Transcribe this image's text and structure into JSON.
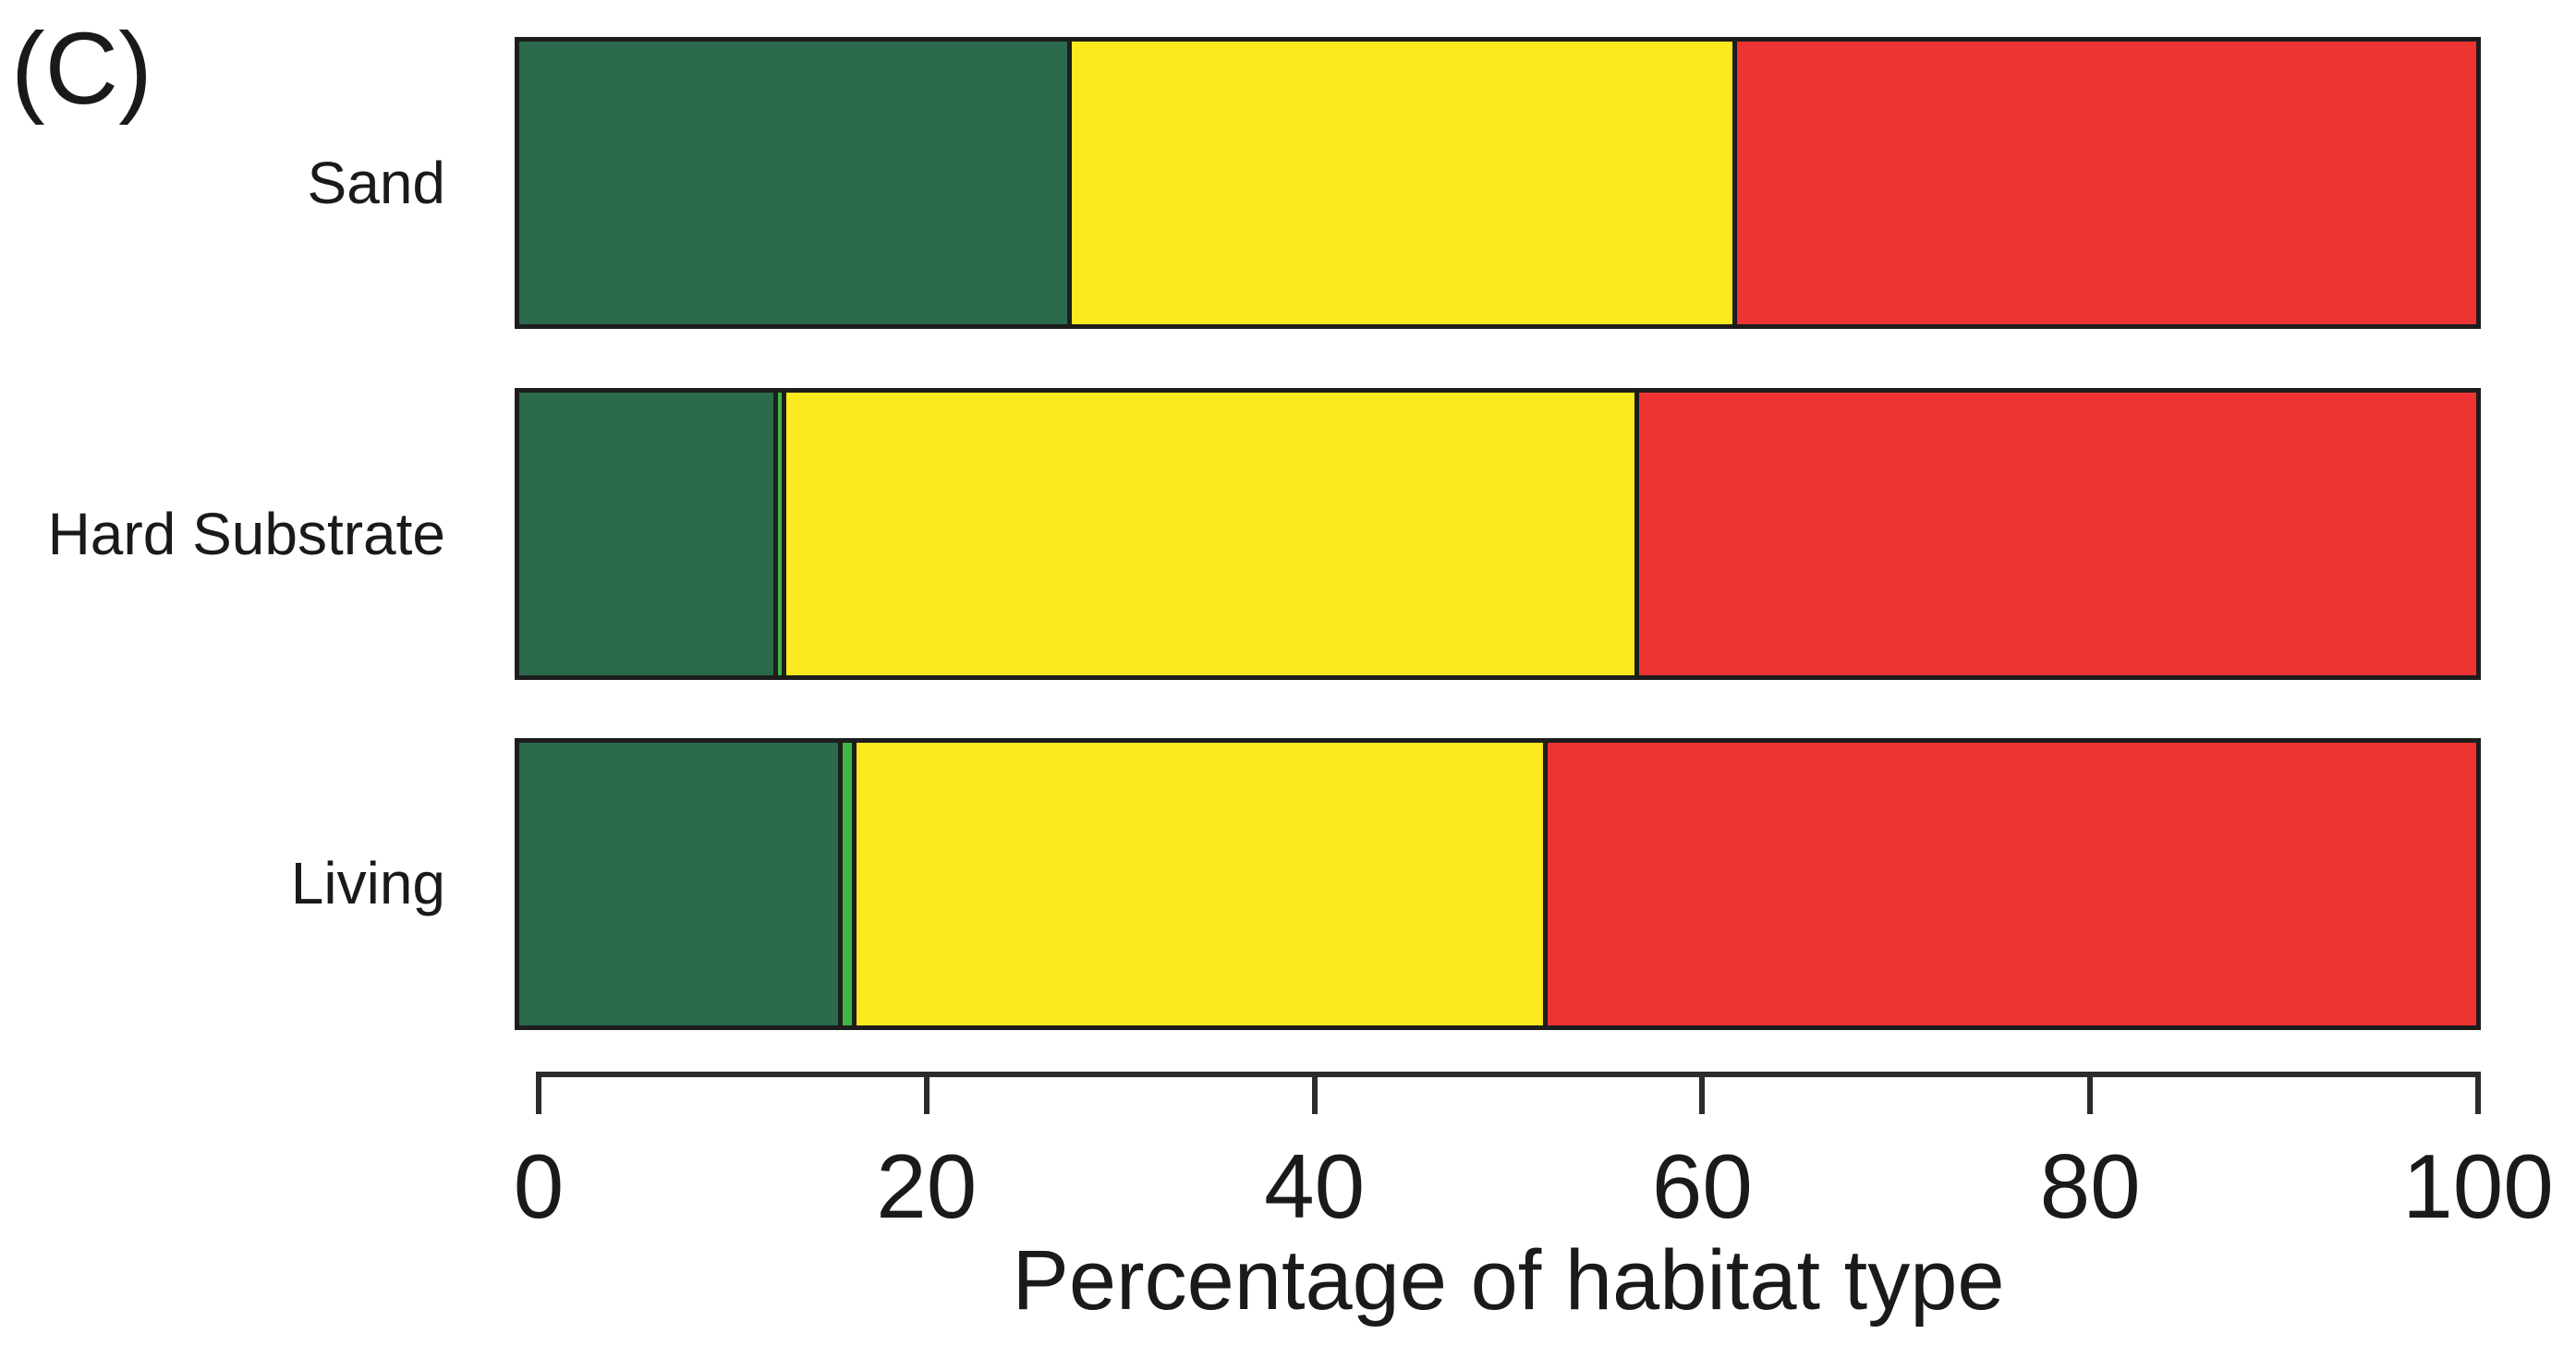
{
  "panel_label": "(C)",
  "colors": {
    "background": "#ffffff",
    "bar_border": "#1d1d1d",
    "axis": "#2b2b2b",
    "text": "#1a1a1a",
    "dark_green": "#2b6a4c",
    "light_green": "#3eb549",
    "yellow": "#fce91e",
    "red": "#ee3333"
  },
  "chart_data": {
    "type": "bar",
    "orientation": "horizontal",
    "stacked": true,
    "title": "",
    "xlabel": "Percentage of habitat type",
    "ylabel": "",
    "xlim": [
      0,
      100
    ],
    "x_ticks": [
      0,
      20,
      40,
      60,
      80,
      100
    ],
    "grid": false,
    "legend_position": "none",
    "categories": [
      "Sand",
      "Hard Substrate",
      "Living"
    ],
    "series": [
      {
        "name": "dark-green",
        "color": "#2b6a4c",
        "values": [
          28,
          13,
          16.3
        ]
      },
      {
        "name": "light-green",
        "color": "#3eb549",
        "values": [
          0,
          0.4,
          0.7
        ]
      },
      {
        "name": "yellow",
        "color": "#fce91e",
        "values": [
          34,
          43.6,
          35.3
        ]
      },
      {
        "name": "red",
        "color": "#ee3333",
        "values": [
          38,
          43,
          47.7
        ]
      }
    ]
  }
}
